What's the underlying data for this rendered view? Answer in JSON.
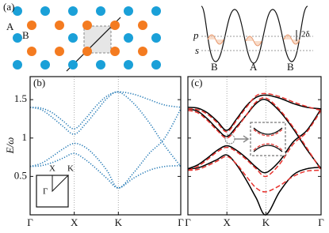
{
  "lattice_figure": {
    "panel_label": "(a)",
    "site_labels": [
      "A",
      "B"
    ],
    "level_labels": [
      "p",
      "s"
    ],
    "splitting": "2δ",
    "well_labels": [
      "B",
      "A",
      "B"
    ]
  },
  "chart_data": [
    {
      "type": "line",
      "panel_label": "(b)",
      "y_label": "E/ω",
      "x": [
        0,
        0.25,
        0.5,
        0.75,
        1,
        1.25,
        1.5,
        1.75,
        2,
        2.35,
        2.7,
        3.05,
        3.414
      ],
      "xlim": [
        0,
        3.414
      ],
      "xticks": [
        {
          "value": 0,
          "label": "Γ"
        },
        {
          "value": 1,
          "label": "X"
        },
        {
          "value": 2,
          "label": "K"
        },
        {
          "value": 3.414,
          "label": "Γ"
        }
      ],
      "ylim": [
        0,
        1.8
      ],
      "yticks": [
        0.5,
        1,
        1.5
      ],
      "grid": "x",
      "inset_labels": [
        "X",
        "K",
        "Γ"
      ],
      "series": [
        {
          "color": "#1f77b4",
          "line_style": "dotted",
          "values": [
            0.63,
            0.64,
            0.68,
            0.74,
            0.8,
            0.72,
            0.6,
            0.47,
            0.35,
            0.48,
            0.58,
            0.63,
            0.64
          ]
        },
        {
          "color": "#1f77b4",
          "line_style": "dotted",
          "values": [
            0.63,
            0.67,
            0.76,
            0.86,
            0.93,
            0.88,
            0.75,
            0.57,
            0.35,
            0.55,
            0.8,
            1.0,
            1.38
          ]
        },
        {
          "color": "#1f77b4",
          "line_style": "dotted",
          "values": [
            1.4,
            1.37,
            1.27,
            1.15,
            1.05,
            1.18,
            1.35,
            1.52,
            1.6,
            1.45,
            1.2,
            0.9,
            0.63
          ]
        },
        {
          "color": "#1f77b4",
          "line_style": "dotted",
          "values": [
            1.4,
            1.39,
            1.33,
            1.22,
            1.12,
            1.25,
            1.42,
            1.55,
            1.6,
            1.57,
            1.5,
            1.43,
            1.4
          ]
        }
      ]
    },
    {
      "type": "line",
      "panel_label": "(c)",
      "x": [
        0,
        0.25,
        0.5,
        0.75,
        1,
        1.25,
        1.5,
        1.75,
        2,
        2.35,
        2.7,
        3.05,
        3.414
      ],
      "xlim": [
        0,
        3.414
      ],
      "xticks": [
        {
          "value": 0,
          "label": "Γ"
        },
        {
          "value": 1,
          "label": "X"
        },
        {
          "value": 2,
          "label": "K"
        },
        {
          "value": 3.414,
          "label": "Γ"
        }
      ],
      "ylim": [
        0,
        1.8
      ],
      "yticks": [
        0.5,
        1,
        1.5
      ],
      "grid": "x",
      "series": [
        {
          "color": "#000000",
          "line_style": "solid",
          "values": [
            0.6,
            0.61,
            0.66,
            0.72,
            0.78,
            0.65,
            0.45,
            0.22,
            0,
            0.3,
            0.52,
            0.6,
            0.62
          ]
        },
        {
          "color": "#000000",
          "line_style": "solid",
          "values": [
            0.6,
            0.65,
            0.74,
            0.84,
            0.9,
            0.84,
            0.74,
            0.62,
            0.55,
            0.7,
            0.95,
            1.1,
            1.38
          ]
        },
        {
          "color": "#000000",
          "line_style": "solid",
          "values": [
            1.38,
            1.35,
            1.25,
            1.12,
            1.02,
            1.15,
            1.3,
            1.45,
            1.5,
            1.35,
            1.12,
            0.85,
            0.6
          ]
        },
        {
          "color": "#000000",
          "line_style": "solid",
          "values": [
            1.4,
            1.39,
            1.33,
            1.22,
            1.1,
            1.25,
            1.42,
            1.53,
            1.56,
            1.52,
            1.45,
            1.4,
            1.38
          ]
        },
        {
          "color": "#e8322d",
          "line_style": "dashed",
          "values": [
            0.58,
            0.59,
            0.64,
            0.7,
            0.76,
            0.66,
            0.5,
            0.35,
            0.3,
            0.38,
            0.5,
            0.57,
            0.58
          ]
        },
        {
          "color": "#e8322d",
          "line_style": "dashed",
          "values": [
            0.58,
            0.63,
            0.72,
            0.82,
            0.88,
            0.82,
            0.72,
            0.6,
            0.5,
            0.66,
            0.92,
            1.08,
            1.36
          ]
        },
        {
          "color": "#e8322d",
          "line_style": "dashed",
          "values": [
            1.36,
            1.33,
            1.23,
            1.1,
            1.0,
            1.13,
            1.3,
            1.47,
            1.52,
            1.37,
            1.14,
            0.87,
            0.58
          ]
        },
        {
          "color": "#e8322d",
          "line_style": "dashed",
          "values": [
            1.38,
            1.37,
            1.31,
            1.2,
            1.08,
            1.23,
            1.4,
            1.55,
            1.58,
            1.54,
            1.47,
            1.41,
            1.36
          ]
        }
      ]
    }
  ]
}
